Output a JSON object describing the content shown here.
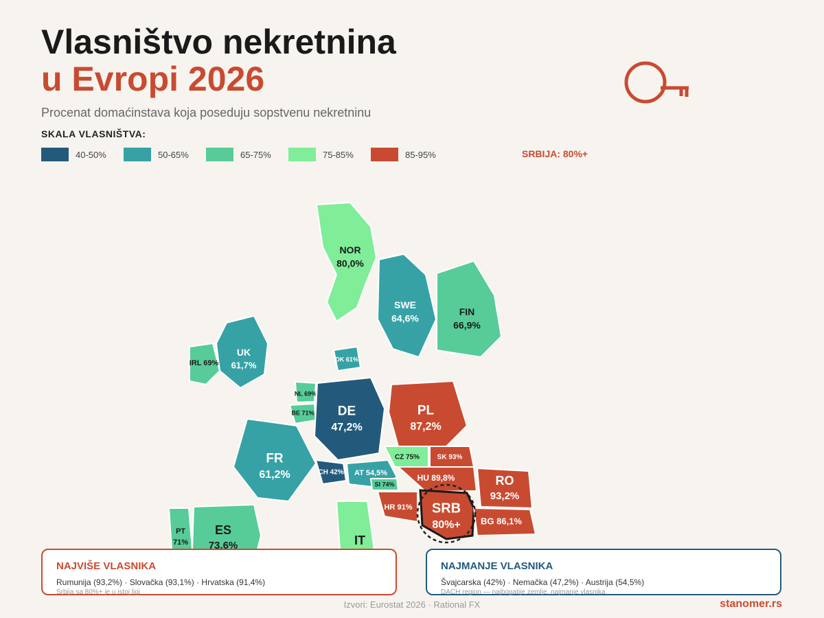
{
  "header": {
    "title_line1": "Vlasništvo nekretnina",
    "title_line2": "u Evropi 2026",
    "subtitle": "Procenat domaćinstava koja poseduju sopstvenu nekretninu"
  },
  "legend": {
    "title": "SKALA VLASNIŠTVA:",
    "items": [
      {
        "label": "40-50%",
        "color": "#235a7c"
      },
      {
        "label": "50-65%",
        "color": "#36a2a6"
      },
      {
        "label": "65-75%",
        "color": "#57cc99"
      },
      {
        "label": "75-85%",
        "color": "#80ed99"
      },
      {
        "label": "85-95%",
        "color": "#c84b31"
      }
    ],
    "serbia_note": "SRBIJA: 80%+"
  },
  "map": {
    "countries": [
      {
        "name": "NOR",
        "value": "80,0%",
        "color": "#80ed99"
      },
      {
        "name": "SWE",
        "value": "64,6%",
        "color": "#36a2a6"
      },
      {
        "name": "FIN",
        "value": "66,9%",
        "color": "#57cc99"
      },
      {
        "name": "UK",
        "value": "61,7%",
        "color": "#36a2a6"
      },
      {
        "label": "IRL 69%",
        "color": "#57cc99"
      },
      {
        "label": "DK 61%",
        "color": "#36a2a6"
      },
      {
        "label": "NL 69%",
        "color": "#57cc99"
      },
      {
        "label": "BE 71%",
        "color": "#57cc99"
      },
      {
        "name": "DE",
        "value": "47,2%",
        "color": "#235a7c"
      },
      {
        "name": "PL",
        "value": "87,2%",
        "color": "#c84b31"
      },
      {
        "name": "FR",
        "value": "61,2%",
        "color": "#36a2a6"
      },
      {
        "label": "CZ 75%",
        "color": "#80ed99"
      },
      {
        "label": "SK 93%",
        "color": "#c84b31"
      },
      {
        "label": "HU 89,8%",
        "color": "#c84b31"
      },
      {
        "label": "CH 42%",
        "color": "#235a7c"
      },
      {
        "label": "AT 54,5%",
        "color": "#36a2a6"
      },
      {
        "label": "SI 74%",
        "color": "#57cc99"
      },
      {
        "label": "HR 91%",
        "color": "#c84b31"
      },
      {
        "name": "SRB",
        "value": "80%+",
        "color": "#c84b31"
      },
      {
        "name": "RO",
        "value": "93,2%",
        "color": "#c84b31"
      },
      {
        "label": "BG 86,1%",
        "color": "#c84b31"
      },
      {
        "name": "PT",
        "value": "71%",
        "color": "#57cc99"
      },
      {
        "name": "ES",
        "value": "73,6%",
        "color": "#57cc99"
      },
      {
        "name": "IT",
        "color": "#80ed99"
      }
    ]
  },
  "panels": {
    "most": {
      "title": "NAJVIŠE VLASNIKA",
      "text": "Rumunija (93,2%) · Slovačka (93,1%) · Hrvatska (91,4%)",
      "note": "Srbija sa 80%+ je u istoj ligi"
    },
    "least": {
      "title": "NAJMANJE VLASNIKA",
      "text": "Švajcarska (42%) · Nemačka (47,2%) · Austrija (54,5%)",
      "note": "DACH region — najbogatije zemlje, najmanje vlasnika"
    }
  },
  "footer": {
    "source": "Izvori: Eurostat 2026 · Rational FX",
    "brand": "stanomer.rs"
  }
}
